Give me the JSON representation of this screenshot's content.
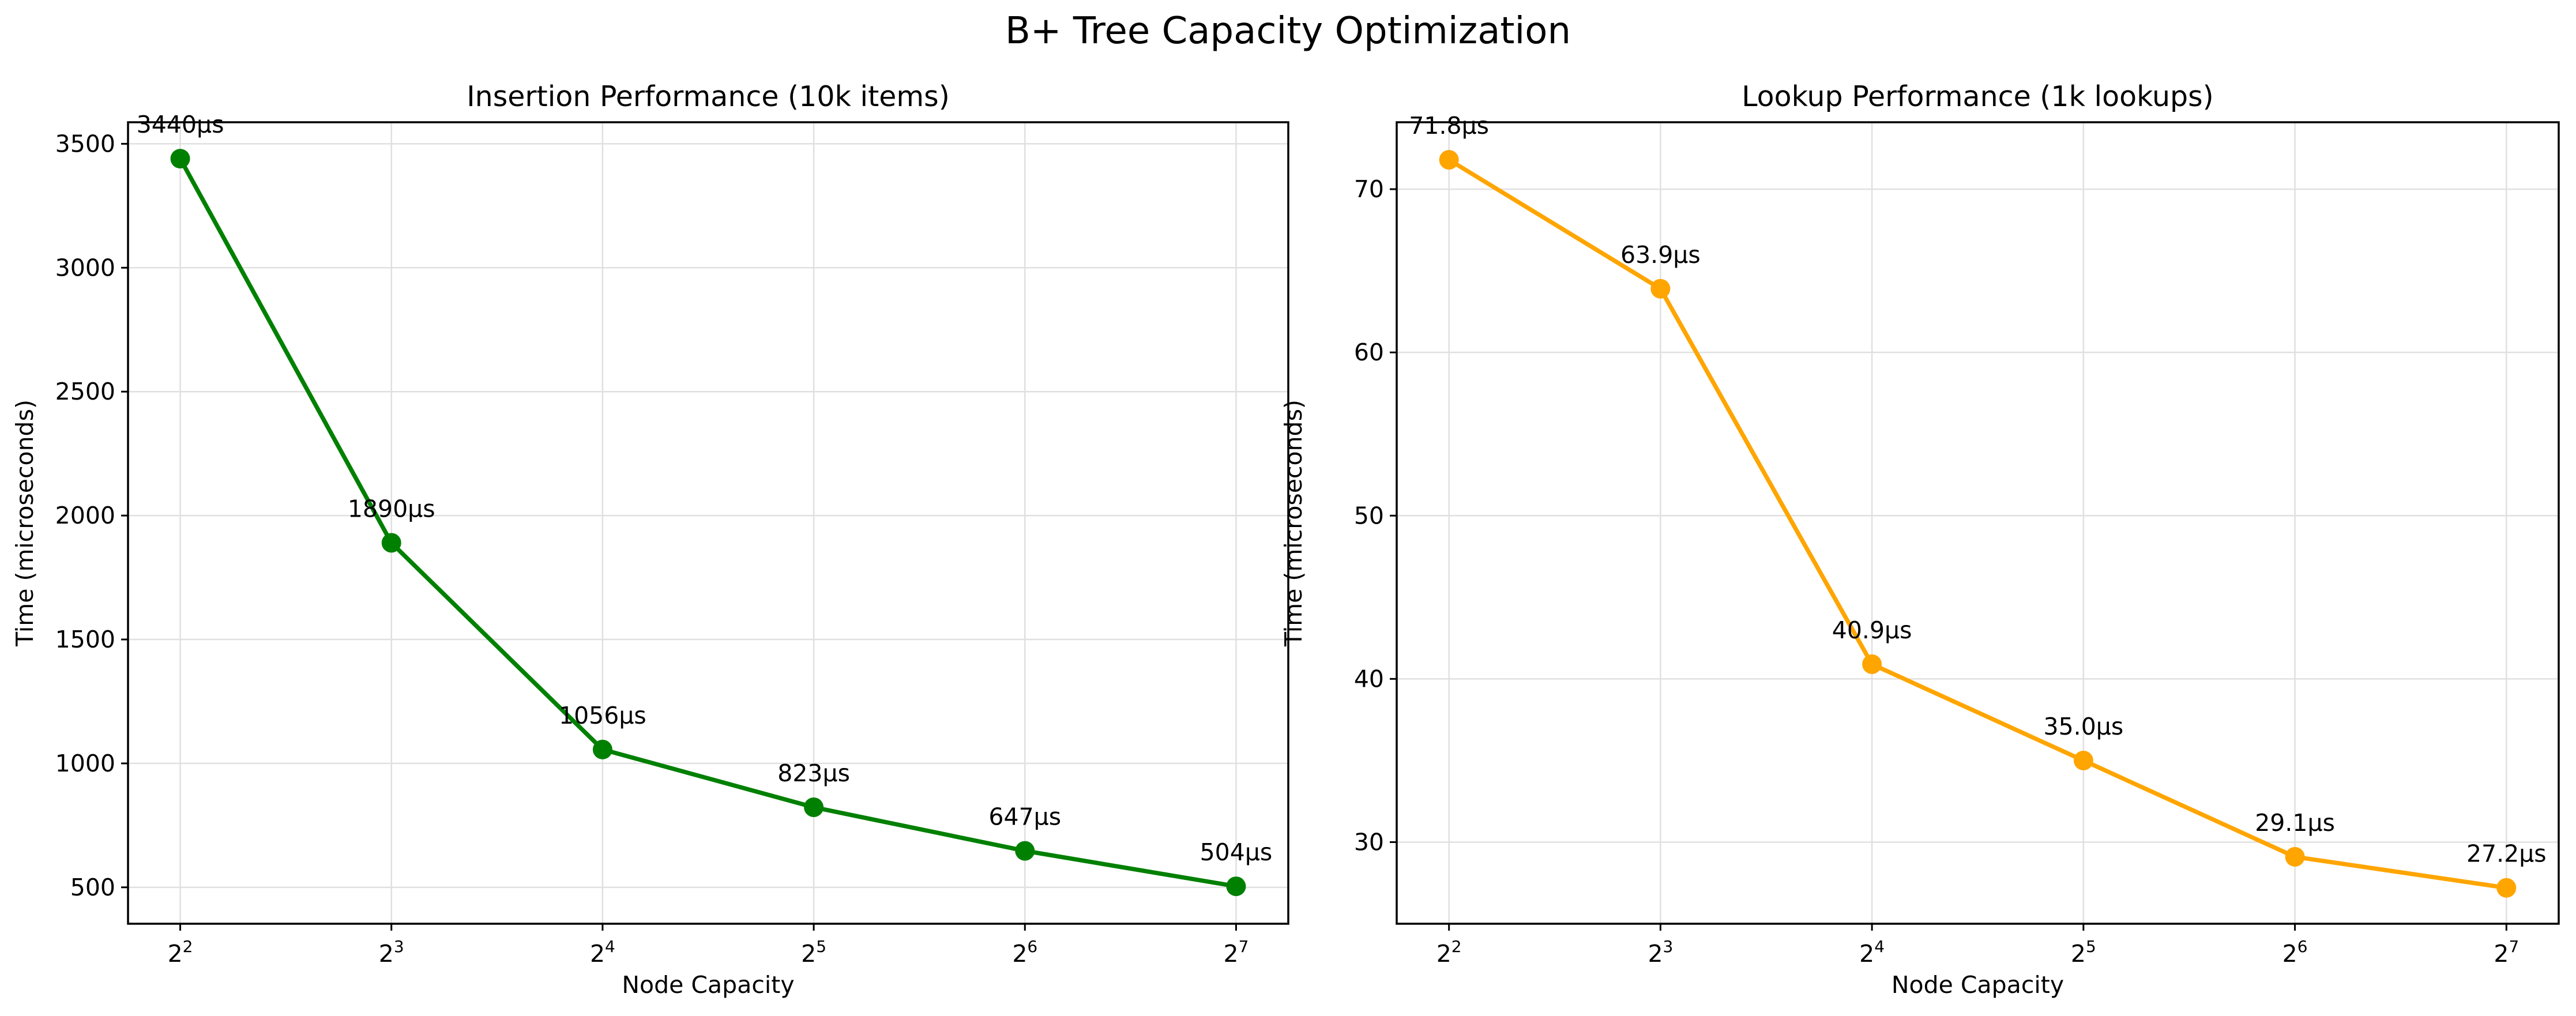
{
  "title": "B+ Tree Capacity Optimization",
  "chart_data": [
    {
      "type": "line",
      "title": "Insertion Performance (10k items)",
      "xlabel": "Node Capacity",
      "ylabel": "Time (microseconds)",
      "x_scale": "log2",
      "x": [
        4,
        8,
        16,
        32,
        64,
        128
      ],
      "x_tick_labels": [
        {
          "base": "2",
          "exp": "2"
        },
        {
          "base": "2",
          "exp": "3"
        },
        {
          "base": "2",
          "exp": "4"
        },
        {
          "base": "2",
          "exp": "5"
        },
        {
          "base": "2",
          "exp": "6"
        },
        {
          "base": "2",
          "exp": "7"
        }
      ],
      "y_ticks": [
        500,
        1000,
        1500,
        2000,
        2500,
        3000,
        3500
      ],
      "ylim": [
        353,
        3587
      ],
      "grid": true,
      "color": "#008000",
      "series": [
        {
          "values": [
            3440,
            1890,
            1056,
            823,
            647,
            504
          ]
        }
      ],
      "data_labels": [
        "3440μs",
        "1890μs",
        "1056μs",
        "823μs",
        "647μs",
        "504μs"
      ]
    },
    {
      "type": "line",
      "title": "Lookup Performance (1k lookups)",
      "xlabel": "Node Capacity",
      "ylabel": "Time (microseconds)",
      "x_scale": "log2",
      "x": [
        4,
        8,
        16,
        32,
        64,
        128
      ],
      "x_tick_labels": [
        {
          "base": "2",
          "exp": "2"
        },
        {
          "base": "2",
          "exp": "3"
        },
        {
          "base": "2",
          "exp": "4"
        },
        {
          "base": "2",
          "exp": "5"
        },
        {
          "base": "2",
          "exp": "6"
        },
        {
          "base": "2",
          "exp": "7"
        }
      ],
      "y_ticks": [
        30,
        40,
        50,
        60,
        70
      ],
      "ylim": [
        25.0,
        74.1
      ],
      "grid": true,
      "color": "#FFA500",
      "series": [
        {
          "values": [
            71.8,
            63.9,
            40.9,
            35.0,
            29.1,
            27.2
          ]
        }
      ],
      "data_labels": [
        "71.8μs",
        "63.9μs",
        "40.9μs",
        "35.0μs",
        "29.1μs",
        "27.2μs"
      ]
    }
  ]
}
